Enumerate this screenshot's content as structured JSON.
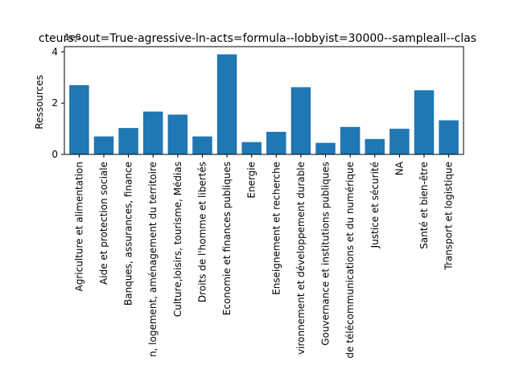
{
  "chart_data": {
    "type": "bar",
    "title": "cteurs:-out=True-agressive-ln-acts=formula--lobbyist=30000--sampleall--clas",
    "ylabel": "Ressources",
    "xlabel": "",
    "offset_text": "1e8",
    "ylim": [
      0,
      4.2
    ],
    "yticks": [
      "0",
      "2",
      "4"
    ],
    "bar_color": "#1f77b4",
    "categories": [
      "Agriculture et alimentation",
      "Aide et protection sociale",
      "Banques, assurances, finance",
      "n, logement, aménagement du territoire",
      "Culture,loisirs, tourisme, Médias",
      "Droits de l'homme et libertés",
      "Economie et finances publiques",
      "Energie",
      "Enseignement et recherche",
      "vironnement et développement durable",
      "Gouvernance et institutions publiques",
      "de télécommunications et du numérique",
      "Justice et sécurité",
      "NA",
      "Santé et bien-être",
      "Transport et logistique"
    ],
    "values": [
      2.7,
      0.7,
      1.03,
      1.67,
      1.55,
      0.7,
      3.9,
      0.48,
      0.88,
      2.62,
      0.45,
      1.07,
      0.6,
      1.0,
      2.5,
      1.33
    ]
  }
}
